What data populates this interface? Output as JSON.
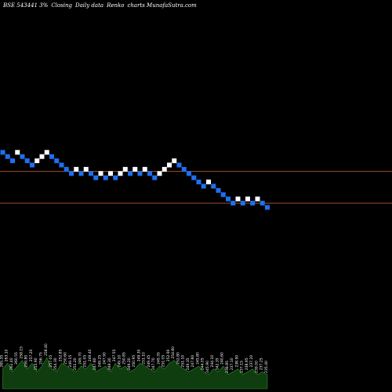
{
  "header": {
    "symbol": "BSE 543441 3%",
    "parts": [
      "Closing",
      "Daily data",
      "Renko",
      "charts MunafaSutra.com"
    ]
  },
  "colors": {
    "background": "#000000",
    "up_brick": "#ffffff",
    "down_brick": "#1e6ff0",
    "level_line": "#a0522d",
    "volume_fill": "#0f3d0f",
    "volume_edge": "#2e8b2e"
  },
  "chart_data": {
    "type": "renko",
    "title": "",
    "xlabel": "",
    "ylabel": "",
    "y_top": 232,
    "y_bottom": 172,
    "grid": false,
    "level_lines": [
      214,
      199
    ],
    "bricks": [
      {
        "d": "down",
        "v": 223
      },
      {
        "d": "down",
        "v": 221
      },
      {
        "d": "down",
        "v": 219
      },
      {
        "d": "up",
        "v": 223
      },
      {
        "d": "down",
        "v": 221
      },
      {
        "d": "down",
        "v": 219
      },
      {
        "d": "down",
        "v": 217
      },
      {
        "d": "up",
        "v": 219
      },
      {
        "d": "up",
        "v": 221
      },
      {
        "d": "up",
        "v": 223
      },
      {
        "d": "down",
        "v": 221
      },
      {
        "d": "down",
        "v": 219
      },
      {
        "d": "down",
        "v": 217
      },
      {
        "d": "down",
        "v": 215
      },
      {
        "d": "down",
        "v": 213
      },
      {
        "d": "up",
        "v": 215
      },
      {
        "d": "down",
        "v": 213
      },
      {
        "d": "up",
        "v": 215
      },
      {
        "d": "down",
        "v": 213
      },
      {
        "d": "down",
        "v": 211
      },
      {
        "d": "up",
        "v": 213
      },
      {
        "d": "down",
        "v": 211
      },
      {
        "d": "up",
        "v": 213
      },
      {
        "d": "down",
        "v": 211
      },
      {
        "d": "up",
        "v": 213
      },
      {
        "d": "up",
        "v": 215
      },
      {
        "d": "down",
        "v": 213
      },
      {
        "d": "up",
        "v": 215
      },
      {
        "d": "down",
        "v": 213
      },
      {
        "d": "up",
        "v": 215
      },
      {
        "d": "down",
        "v": 213
      },
      {
        "d": "down",
        "v": 211
      },
      {
        "d": "up",
        "v": 213
      },
      {
        "d": "up",
        "v": 215
      },
      {
        "d": "up",
        "v": 217
      },
      {
        "d": "up",
        "v": 219
      },
      {
        "d": "down",
        "v": 217
      },
      {
        "d": "down",
        "v": 215
      },
      {
        "d": "down",
        "v": 213
      },
      {
        "d": "down",
        "v": 211
      },
      {
        "d": "down",
        "v": 209
      },
      {
        "d": "down",
        "v": 207
      },
      {
        "d": "up",
        "v": 209
      },
      {
        "d": "down",
        "v": 207
      },
      {
        "d": "down",
        "v": 205
      },
      {
        "d": "down",
        "v": 203
      },
      {
        "d": "down",
        "v": 201
      },
      {
        "d": "down",
        "v": 199
      },
      {
        "d": "up",
        "v": 201
      },
      {
        "d": "down",
        "v": 199
      },
      {
        "d": "up",
        "v": 201
      },
      {
        "d": "down",
        "v": 199
      },
      {
        "d": "up",
        "v": 201
      },
      {
        "d": "down",
        "v": 199
      },
      {
        "d": "down",
        "v": 197
      }
    ],
    "volume": [
      7,
      9,
      6,
      8,
      10,
      7,
      9,
      6,
      8,
      11,
      7,
      6,
      9,
      8,
      7,
      6,
      8,
      7,
      9,
      6,
      7,
      8,
      6,
      9,
      7,
      8,
      6,
      7,
      9,
      8,
      7,
      6,
      8,
      7,
      9,
      10,
      8,
      7,
      6,
      7,
      8,
      6,
      5,
      7,
      6,
      8,
      5,
      6,
      7,
      5,
      6,
      7,
      5,
      6,
      5
    ],
    "labels": [
      "265.35",
      "263.10",
      "261.40",
      "260.55",
      "258.15",
      "259.80",
      "257.20",
      "255.90",
      "256.75",
      "258.40",
      "257.05",
      "254.30",
      "252.85",
      "250.60",
      "249.15",
      "251.20",
      "249.70",
      "251.05",
      "249.40",
      "247.80",
      "249.25",
      "247.90",
      "249.30",
      "247.55",
      "249.10",
      "250.85",
      "249.20",
      "250.95",
      "249.30",
      "251.10",
      "249.45",
      "247.70",
      "249.35",
      "251.05",
      "252.90",
      "254.60",
      "252.80",
      "251.10",
      "249.35",
      "247.60",
      "245.80",
      "244.05",
      "245.90",
      "244.10",
      "242.35",
      "240.60",
      "238.85",
      "237.10",
      "238.90",
      "237.15",
      "238.95",
      "237.20",
      "239.00",
      "237.25",
      "235.40"
    ]
  }
}
